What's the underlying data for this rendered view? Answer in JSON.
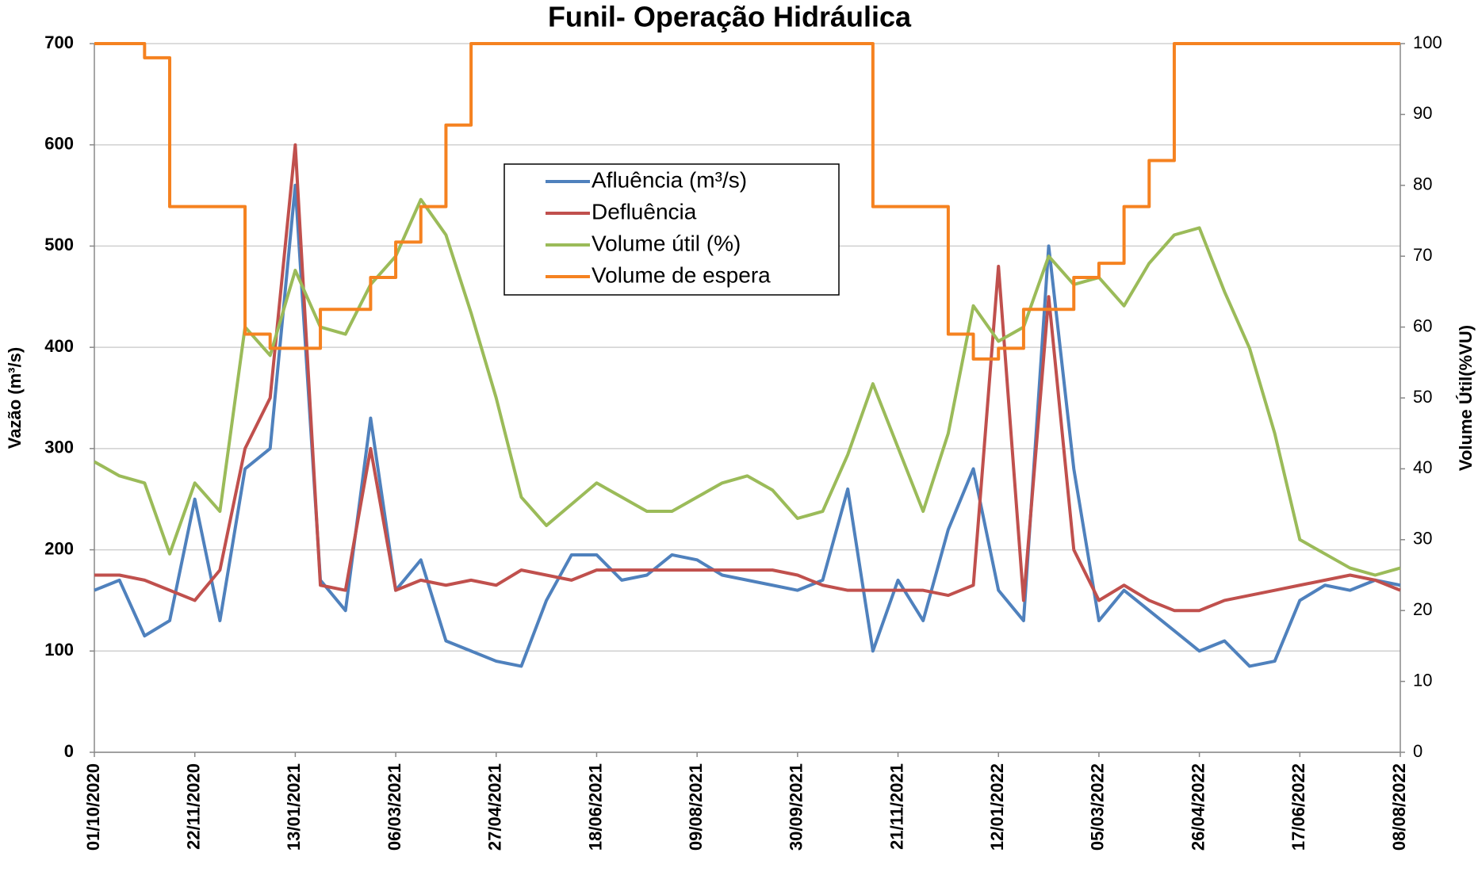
{
  "chart_data": {
    "type": "line",
    "title": "Funil- Operação Hidráulica",
    "y_label": "Vazão (m³/s)",
    "y2_label": "Volume Útil(%VU)",
    "x": [
      "01/10/2020",
      "14/10/2020",
      "27/10/2020",
      "09/11/2020",
      "22/11/2020",
      "05/12/2020",
      "18/12/2020",
      "31/12/2020",
      "13/01/2021",
      "26/01/2021",
      "08/02/2021",
      "21/02/2021",
      "06/03/2021",
      "19/03/2021",
      "01/04/2021",
      "14/04/2021",
      "27/04/2021",
      "10/05/2021",
      "23/05/2021",
      "05/06/2021",
      "18/06/2021",
      "01/07/2021",
      "14/07/2021",
      "27/07/2021",
      "09/08/2021",
      "22/08/2021",
      "04/09/2021",
      "17/09/2021",
      "30/09/2021",
      "13/10/2021",
      "26/10/2021",
      "08/11/2021",
      "21/11/2021",
      "04/12/2021",
      "17/12/2021",
      "30/12/2021",
      "12/01/2022",
      "25/01/2022",
      "07/02/2022",
      "20/02/2022",
      "05/03/2022",
      "18/03/2022",
      "31/03/2022",
      "13/04/2022",
      "26/04/2022",
      "09/05/2022",
      "22/05/2022",
      "04/06/2022",
      "17/06/2022",
      "30/06/2022",
      "13/07/2022",
      "26/07/2022",
      "08/08/2022"
    ],
    "xlim": [
      "01/10/2020",
      "08/08/2022"
    ],
    "xticks": [
      "01/10/2020",
      "22/11/2020",
      "13/01/2021",
      "06/03/2021",
      "27/04/2021",
      "18/06/2021",
      "09/08/2021",
      "30/09/2021",
      "21/11/2021",
      "12/01/2022",
      "05/03/2022",
      "26/04/2022",
      "17/06/2022",
      "08/08/2022"
    ],
    "ylim": [
      0,
      700
    ],
    "yticks": [
      0,
      100,
      200,
      300,
      400,
      500,
      600,
      700
    ],
    "y2lim": [
      0,
      100
    ],
    "y2ticks": [
      0,
      10,
      20,
      30,
      40,
      50,
      60,
      70,
      80,
      90,
      100
    ],
    "grid": true,
    "legend": "top-center",
    "series": [
      {
        "name": "Afluência (m³/s)",
        "color": "#4f81bd",
        "values": [
          160,
          170,
          115,
          130,
          250,
          130,
          280,
          300,
          560,
          170,
          140,
          330,
          160,
          190,
          110,
          100,
          90,
          85,
          150,
          195,
          195,
          170,
          175,
          195,
          190,
          175,
          170,
          165,
          160,
          170,
          260,
          100,
          170,
          130,
          220,
          280,
          160,
          130,
          500,
          280,
          130,
          160,
          140,
          120,
          100,
          110,
          85,
          90,
          150,
          165,
          160,
          170,
          165
        ]
      },
      {
        "name": "Defluência",
        "color": "#c0504d",
        "values": [
          175,
          175,
          170,
          160,
          150,
          180,
          300,
          350,
          600,
          165,
          160,
          300,
          160,
          170,
          165,
          170,
          165,
          180,
          175,
          170,
          180,
          180,
          180,
          180,
          180,
          180,
          180,
          180,
          175,
          165,
          160,
          160,
          160,
          160,
          155,
          165,
          480,
          150,
          450,
          200,
          150,
          165,
          150,
          140,
          140,
          150,
          155,
          160,
          165,
          170,
          175,
          170,
          160
        ]
      },
      {
        "name": "Volume útil (%)",
        "color": "#9bbb59",
        "axis": "y2",
        "values": [
          41,
          39,
          38,
          28,
          38,
          34,
          60,
          56,
          68,
          60,
          59,
          66,
          70,
          78,
          73,
          62,
          50,
          36,
          32,
          35,
          38,
          36,
          34,
          34,
          36,
          38,
          39,
          37,
          33,
          34,
          42,
          52,
          43,
          34,
          45,
          63,
          58,
          60,
          70,
          66,
          67,
          63,
          69,
          73,
          74,
          65,
          57,
          45,
          30,
          28,
          26,
          25,
          26
        ]
      },
      {
        "name": "Volume de espera",
        "color": "#f58220",
        "axis": "y2",
        "step": true,
        "values": [
          100,
          100,
          98,
          77,
          77,
          77,
          59,
          57,
          57,
          62.5,
          62.5,
          67,
          72,
          77,
          88.5,
          100,
          100,
          100,
          100,
          100,
          100,
          100,
          100,
          100,
          100,
          100,
          100,
          100,
          100,
          100,
          100,
          77,
          77,
          77,
          59,
          55.5,
          57,
          62.5,
          62.5,
          67,
          69,
          77,
          83.5,
          100,
          100,
          100,
          100,
          100,
          100,
          100,
          100,
          100,
          100
        ]
      }
    ]
  }
}
